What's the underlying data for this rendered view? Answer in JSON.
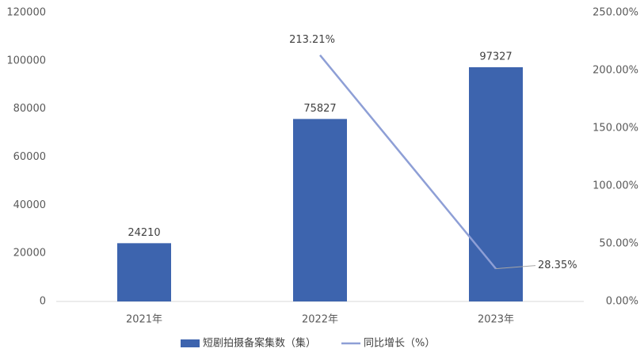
{
  "chart_data": {
    "type": "bar",
    "categories": [
      "2021年",
      "2022年",
      "2023年"
    ],
    "series": [
      {
        "name": "短剧拍摄备案集数（集）",
        "color": "#3d64ae",
        "type": "bar",
        "values": [
          24210,
          75827,
          97327
        ]
      },
      {
        "name": "同比增长（%）",
        "color": "#8e9fd6",
        "type": "line",
        "axis": "y2",
        "values": [
          null,
          213.21,
          28.35
        ],
        "value_labels": [
          null,
          "213.21%",
          "28.35%"
        ]
      }
    ],
    "ylim": [
      0,
      120000
    ],
    "yticks": [
      0,
      20000,
      40000,
      60000,
      80000,
      100000,
      120000
    ],
    "y2lim": [
      0,
      250
    ],
    "y2ticks": [
      {
        "value": 0,
        "label": "0.00%"
      },
      {
        "value": 50,
        "label": "50.00%"
      },
      {
        "value": 100,
        "label": "100.00%"
      },
      {
        "value": 150,
        "label": "150.00%"
      },
      {
        "value": 200,
        "label": "200.00%"
      },
      {
        "value": 250,
        "label": "250.00%"
      }
    ],
    "legend": "bottom",
    "grid": false
  }
}
